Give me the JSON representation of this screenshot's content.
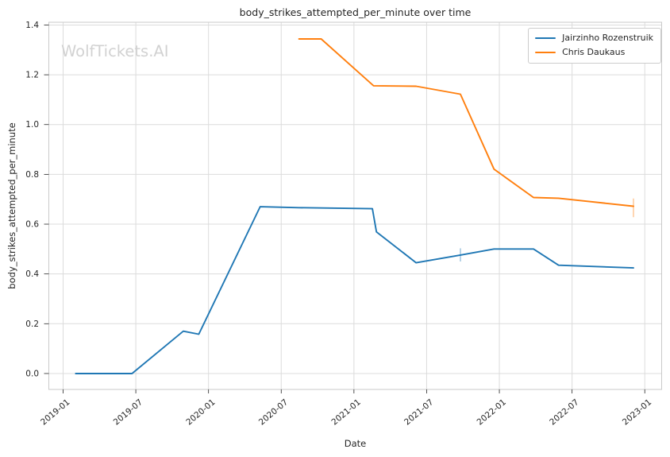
{
  "watermark": "WolfTickets.AI",
  "colors": {
    "background": "#ffffff",
    "grid": "#dcdcdc",
    "spine": "#c9c9c9",
    "text": "#262626",
    "watermark": "#d2d2d2",
    "series_blue": "#1f77b4",
    "series_orange": "#ff7f0e"
  },
  "chart_data": {
    "type": "line",
    "title": "body_strikes_attempted_per_minute over time",
    "xlabel": "Date",
    "ylabel": "body_strikes_attempted_per_minute",
    "grid": true,
    "legend_position": "upper right",
    "xlim": [
      "2018-11-26",
      "2023-02-13"
    ],
    "ylim": [
      -0.064,
      1.411
    ],
    "x_ticks": [
      {
        "date": "2019-01-01",
        "label": "2019-01"
      },
      {
        "date": "2019-07-01",
        "label": "2019-07"
      },
      {
        "date": "2020-01-01",
        "label": "2020-01"
      },
      {
        "date": "2020-07-01",
        "label": "2020-07"
      },
      {
        "date": "2021-01-01",
        "label": "2021-01"
      },
      {
        "date": "2021-07-01",
        "label": "2021-07"
      },
      {
        "date": "2022-01-01",
        "label": "2022-01"
      },
      {
        "date": "2022-07-01",
        "label": "2022-07"
      },
      {
        "date": "2023-01-01",
        "label": "2023-01"
      }
    ],
    "y_ticks": [
      {
        "value": 0.0,
        "label": "0.0"
      },
      {
        "value": 0.2,
        "label": "0.2"
      },
      {
        "value": 0.4,
        "label": "0.4"
      },
      {
        "value": 0.6,
        "label": "0.6"
      },
      {
        "value": 0.8,
        "label": "0.8"
      },
      {
        "value": 1.0,
        "label": "1.0"
      },
      {
        "value": 1.2,
        "label": "1.2"
      },
      {
        "value": 1.4,
        "label": "1.4"
      }
    ],
    "series": [
      {
        "name": "Jairzinho Rozenstruik",
        "color": "#1f77b4",
        "points": [
          {
            "date": "2019-02-02",
            "value": 0.0
          },
          {
            "date": "2019-06-22",
            "value": 0.0
          },
          {
            "date": "2019-10-29",
            "value": 0.17
          },
          {
            "date": "2019-12-07",
            "value": 0.158
          },
          {
            "date": "2020-05-09",
            "value": 0.67
          },
          {
            "date": "2020-08-15",
            "value": 0.666
          },
          {
            "date": "2021-02-17",
            "value": 0.662
          },
          {
            "date": "2021-02-27",
            "value": 0.569
          },
          {
            "date": "2021-06-05",
            "value": 0.445
          },
          {
            "date": "2021-09-25",
            "value": 0.476
          },
          {
            "date": "2021-12-18",
            "value": 0.5
          },
          {
            "date": "2022-03-26",
            "value": 0.5
          },
          {
            "date": "2022-05-28",
            "value": 0.435
          },
          {
            "date": "2022-12-03",
            "value": 0.424
          }
        ],
        "error_bars": [
          {
            "date": "2021-09-25",
            "lo": 0.45,
            "hi": 0.503
          }
        ]
      },
      {
        "name": "Chris Daukaus",
        "color": "#ff7f0e",
        "points": [
          {
            "date": "2020-08-15",
            "value": 1.344
          },
          {
            "date": "2020-10-10",
            "value": 1.344
          },
          {
            "date": "2021-02-20",
            "value": 1.156
          },
          {
            "date": "2021-06-05",
            "value": 1.154
          },
          {
            "date": "2021-09-25",
            "value": 1.122
          },
          {
            "date": "2021-12-18",
            "value": 0.821
          },
          {
            "date": "2022-03-26",
            "value": 0.707
          },
          {
            "date": "2022-05-28",
            "value": 0.704
          },
          {
            "date": "2022-12-03",
            "value": 0.672
          }
        ],
        "error_bars": [
          {
            "date": "2022-12-03",
            "lo": 0.628,
            "hi": 0.703
          }
        ]
      }
    ]
  }
}
